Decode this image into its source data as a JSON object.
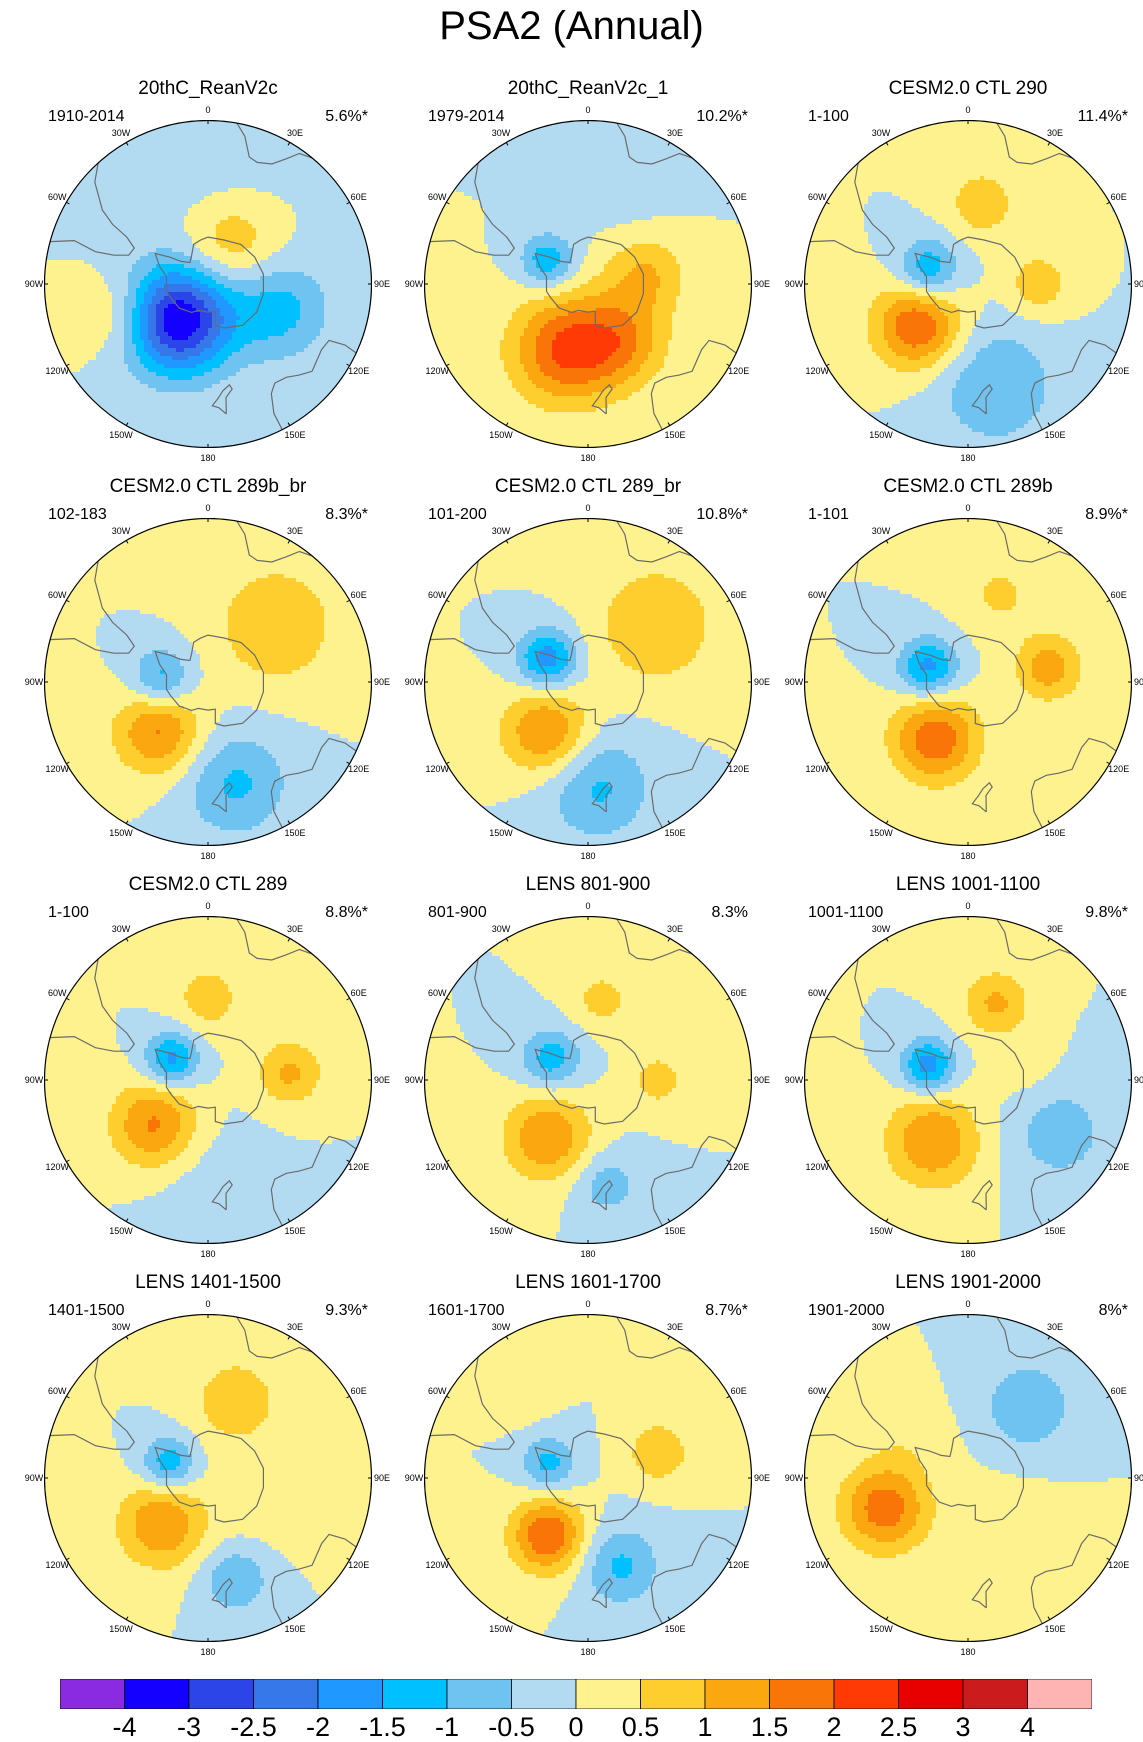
{
  "title": "PSA2 (Annual)",
  "colors": {
    "land_outline": "#6b6b6b",
    "map_border": "#000000"
  },
  "longitude_labels": [
    "0",
    "30E",
    "60E",
    "90E",
    "120E",
    "150E",
    "180",
    "150W",
    "120W",
    "90W",
    "60W",
    "30W"
  ],
  "chart_data": [
    {
      "type": "heatmap",
      "title": "20thC_ReanV2c",
      "period": "1910-2014",
      "explained_variance": "5.6%*",
      "features": [
        {
          "lon": 220,
          "lat": -70,
          "amp": -3.5,
          "r": 16
        },
        {
          "lon": 30,
          "lat": -70,
          "amp": 1.0,
          "r": 14
        },
        {
          "lon": 110,
          "lat": -58,
          "amp": -1.2,
          "r": 15
        },
        {
          "lon": 250,
          "lat": -50,
          "amp": 0.8,
          "r": 12
        },
        {
          "lon": 0,
          "lat": -40,
          "amp": -0.3,
          "r": 25
        }
      ]
    },
    {
      "type": "heatmap",
      "title": "20thC_ReanV2c_1",
      "period": "1979-2014",
      "explained_variance": "10.2%*",
      "features": [
        {
          "lon": 200,
          "lat": -60,
          "amp": 2.0,
          "r": 16
        },
        {
          "lon": 150,
          "lat": -62,
          "amp": 1.3,
          "r": 14
        },
        {
          "lon": 80,
          "lat": -65,
          "amp": 1.0,
          "r": 12
        },
        {
          "lon": 300,
          "lat": -70,
          "amp": -1.4,
          "r": 8
        },
        {
          "lon": 20,
          "lat": -45,
          "amp": -0.3,
          "r": 15
        }
      ]
    },
    {
      "type": "heatmap",
      "title": "CESM2.0 CTL 290",
      "period": "1-100",
      "explained_variance": "11.4%*",
      "features": [
        {
          "lon": 230,
          "lat": -62,
          "amp": 2.0,
          "r": 13
        },
        {
          "lon": 290,
          "lat": -72,
          "amp": -1.5,
          "r": 9
        },
        {
          "lon": 90,
          "lat": -60,
          "amp": 0.9,
          "r": 9
        },
        {
          "lon": 10,
          "lat": -55,
          "amp": 0.9,
          "r": 10
        },
        {
          "lon": 165,
          "lat": -45,
          "amp": -1.0,
          "r": 18
        }
      ]
    },
    {
      "type": "heatmap",
      "title": "CESM2.0 CTL 289b_br",
      "period": "102-183",
      "explained_variance": "8.3%*",
      "features": [
        {
          "lon": 225,
          "lat": -60,
          "amp": 1.6,
          "r": 13
        },
        {
          "lon": 275,
          "lat": -70,
          "amp": -1.3,
          "r": 9
        },
        {
          "lon": 50,
          "lat": -52,
          "amp": 1.0,
          "r": 18
        },
        {
          "lon": 165,
          "lat": -45,
          "amp": -1.1,
          "r": 16
        }
      ]
    },
    {
      "type": "heatmap",
      "title": "CESM2.0 CTL 289_br",
      "period": "101-200",
      "explained_variance": "10.8%*",
      "features": [
        {
          "lon": 220,
          "lat": -62,
          "amp": 1.6,
          "r": 13
        },
        {
          "lon": 300,
          "lat": -70,
          "amp": -1.8,
          "r": 9
        },
        {
          "lon": 50,
          "lat": -52,
          "amp": 1.0,
          "r": 18
        },
        {
          "lon": 175,
          "lat": -45,
          "amp": -1.1,
          "r": 16
        }
      ]
    },
    {
      "type": "heatmap",
      "title": "CESM2.0 CTL 289b",
      "period": "1-101",
      "explained_variance": "8.9%*",
      "features": [
        {
          "lon": 210,
          "lat": -62,
          "amp": 1.9,
          "r": 13
        },
        {
          "lon": 290,
          "lat": -72,
          "amp": -1.7,
          "r": 9
        },
        {
          "lon": 80,
          "lat": -55,
          "amp": 1.3,
          "r": 10
        },
        {
          "lon": 20,
          "lat": -50,
          "amp": 0.6,
          "r": 12
        }
      ]
    },
    {
      "type": "heatmap",
      "title": "CESM2.0 CTL 289",
      "period": "1-100",
      "explained_variance": "8.8%*",
      "features": [
        {
          "lon": 230,
          "lat": -60,
          "amp": 1.6,
          "r": 13
        },
        {
          "lon": 300,
          "lat": -72,
          "amp": -1.7,
          "r": 8
        },
        {
          "lon": 85,
          "lat": -55,
          "amp": 1.1,
          "r": 10
        },
        {
          "lon": 0,
          "lat": -55,
          "amp": 0.8,
          "r": 10
        },
        {
          "lon": 180,
          "lat": -48,
          "amp": -0.3,
          "r": 18
        }
      ]
    },
    {
      "type": "heatmap",
      "title": "LENS 801-900",
      "period": "801-900",
      "explained_variance": "8.3%",
      "features": [
        {
          "lon": 215,
          "lat": -60,
          "amp": 1.5,
          "r": 13
        },
        {
          "lon": 300,
          "lat": -72,
          "amp": -1.3,
          "r": 9
        },
        {
          "lon": 90,
          "lat": -60,
          "amp": 0.8,
          "r": 8
        },
        {
          "lon": 10,
          "lat": -55,
          "amp": 0.7,
          "r": 9
        },
        {
          "lon": 170,
          "lat": -45,
          "amp": -0.8,
          "r": 10
        }
      ]
    },
    {
      "type": "heatmap",
      "title": "LENS 1001-1100",
      "period": "1001-1100",
      "explained_variance": "9.8%*",
      "features": [
        {
          "lon": 210,
          "lat": -60,
          "amp": 1.5,
          "r": 14
        },
        {
          "lon": 290,
          "lat": -72,
          "amp": -1.8,
          "r": 8
        },
        {
          "lon": 20,
          "lat": -55,
          "amp": 1.1,
          "r": 10
        },
        {
          "lon": 120,
          "lat": -45,
          "amp": -0.8,
          "r": 15
        },
        {
          "lon": 80,
          "lat": -65,
          "amp": 0.3,
          "r": 10
        }
      ]
    },
    {
      "type": "heatmap",
      "title": "LENS 1401-1500",
      "period": "1401-1500",
      "explained_variance": "9.3%*",
      "features": [
        {
          "lon": 225,
          "lat": -62,
          "amp": 1.5,
          "r": 13
        },
        {
          "lon": 290,
          "lat": -72,
          "amp": -1.4,
          "r": 8
        },
        {
          "lon": 20,
          "lat": -55,
          "amp": 1.0,
          "r": 12
        },
        {
          "lon": 165,
          "lat": -45,
          "amp": -1.0,
          "r": 10
        },
        {
          "lon": 110,
          "lat": -62,
          "amp": 0.3,
          "r": 14
        }
      ]
    },
    {
      "type": "heatmap",
      "title": "LENS 1601-1700",
      "period": "1601-1700",
      "explained_variance": "8.7%*",
      "features": [
        {
          "lon": 215,
          "lat": -60,
          "amp": 2.0,
          "r": 11
        },
        {
          "lon": 290,
          "lat": -72,
          "amp": -1.2,
          "r": 8
        },
        {
          "lon": 70,
          "lat": -58,
          "amp": 1.0,
          "r": 9
        },
        {
          "lon": 160,
          "lat": -50,
          "amp": -1.1,
          "r": 12
        },
        {
          "lon": 320,
          "lat": -45,
          "amp": 0.3,
          "r": 8
        }
      ]
    },
    {
      "type": "heatmap",
      "title": "LENS 1901-2000",
      "period": "1901-2000",
      "explained_variance": "8%*",
      "features": [
        {
          "lon": 250,
          "lat": -52,
          "amp": 1.8,
          "r": 13
        },
        {
          "lon": 40,
          "lat": -50,
          "amp": -1.0,
          "r": 13
        },
        {
          "lon": 150,
          "lat": -60,
          "amp": 0.3,
          "r": 16
        },
        {
          "lon": 300,
          "lat": -60,
          "amp": 0.3,
          "r": 12
        }
      ]
    }
  ],
  "colorbar": {
    "labels": [
      "-4",
      "-3",
      "-2.5",
      "-2",
      "-1.5",
      "-1",
      "-0.5",
      "0",
      "0.5",
      "1",
      "1.5",
      "2",
      "2.5",
      "3",
      "4"
    ],
    "colors": [
      "#8a2be2",
      "#1400ff",
      "#2b45e8",
      "#3677ea",
      "#1f98ff",
      "#00c0ff",
      "#6ec3f0",
      "#b2dbf2",
      "#fef28e",
      "#fdce2e",
      "#fba70f",
      "#f97508",
      "#ff3a05",
      "#e80000",
      "#cc1b1d",
      "#ffb4b4"
    ]
  }
}
